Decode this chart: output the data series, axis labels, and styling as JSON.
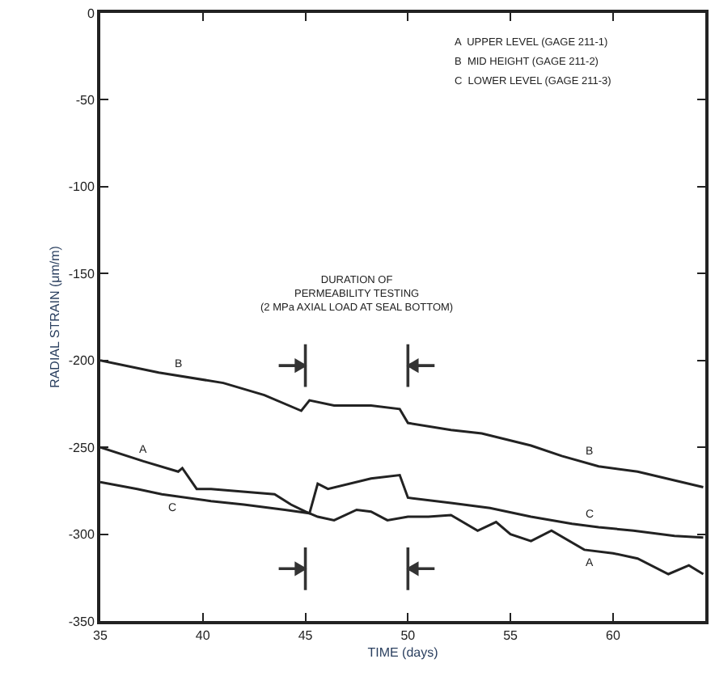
{
  "chart_data": {
    "type": "line",
    "xlabel": "TIME (days)",
    "ylabel": "RADIAL STRAIN (μm/m)",
    "xlim": [
      35,
      64.5
    ],
    "xticks": [
      35,
      40,
      45,
      50,
      55,
      60
    ],
    "ylim": [
      -350,
      0
    ],
    "yticks": [
      -350,
      -300,
      -250,
      -200,
      -150,
      -100,
      -50,
      0
    ],
    "grid": false,
    "legend": false,
    "marker": "none",
    "line_style": "solid",
    "series": [
      {
        "name": "A",
        "color": "#222222",
        "x": [
          35,
          37.1,
          38.8,
          39,
          39.7,
          40.4,
          43.5,
          44.3,
          45,
          45.6,
          46.4,
          47.5,
          48.2,
          49,
          50,
          51,
          52.1,
          53.4,
          54.3,
          55,
          56,
          57,
          58.6,
          60,
          61.2,
          62.7,
          63.7,
          64.4
        ],
        "values": [
          -250,
          -258,
          -264,
          -262,
          -274,
          -274,
          -277,
          -283,
          -287,
          -290,
          -292,
          -286,
          -287,
          -292,
          -290,
          -290,
          -289,
          -298,
          -293,
          -300,
          -304,
          -298,
          -309,
          -311,
          -314,
          -323,
          -318,
          -323
        ]
      },
      {
        "name": "B",
        "color": "#222222",
        "x": [
          35,
          37.85,
          41,
          43,
          44.8,
          45.2,
          46.4,
          48.2,
          49.6,
          50,
          52.1,
          53.6,
          56,
          57.5,
          59.3,
          61.2,
          64.4
        ],
        "values": [
          -200,
          -207,
          -213,
          -220,
          -229,
          -223,
          -226,
          -226,
          -228,
          -236,
          -240,
          -242,
          -249,
          -255,
          -261,
          -264,
          -273
        ]
      },
      {
        "name": "C",
        "color": "#222222",
        "x": [
          35,
          36.8,
          38,
          40.4,
          42,
          44,
          45.2,
          45.6,
          46.1,
          48.2,
          49.6,
          50,
          52.1,
          54,
          56,
          58,
          59.3,
          61,
          63,
          64.4
        ],
        "values": [
          -270,
          -274,
          -277,
          -281,
          -283,
          -286,
          -288,
          -271,
          -274,
          -268,
          -266,
          -279,
          -282,
          -285,
          -290,
          -294,
          -296,
          -298,
          -301,
          -302
        ]
      }
    ],
    "annotations": [
      "DURATION OF\nPERMEABILITY TESTING\n(2 MPa AXIAL LOAD AT SEAL BOTTOM)",
      "A  UPPER LEVEL (GAGE 211-1)",
      "B  MID HEIGHT (GAGE 211-2)",
      "C  LOWER LEVEL (GAGE 211-3)"
    ]
  }
}
